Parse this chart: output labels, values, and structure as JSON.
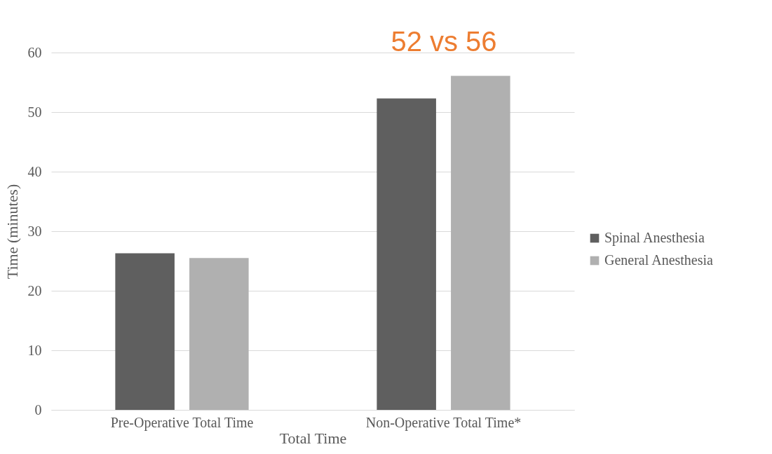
{
  "chart_data": {
    "type": "bar",
    "xlabel": "Total Time",
    "ylabel": "Time (minutes)",
    "categories": [
      "Pre-Operative Total Time",
      "Non-Operative Total Time*"
    ],
    "series": [
      {
        "name": "Spinal Anesthesia",
        "color": "#5f5f5f",
        "values": [
          26.3,
          52.3
        ]
      },
      {
        "name": "General Anesthesia",
        "color": "#b0b0b0",
        "values": [
          25.5,
          56.1
        ]
      }
    ],
    "ylim": [
      0,
      60
    ],
    "yticks": [
      0,
      10,
      20,
      30,
      40,
      50,
      60
    ],
    "grid": "y",
    "legend": "right",
    "annotations": [
      "52 vs 56"
    ]
  }
}
